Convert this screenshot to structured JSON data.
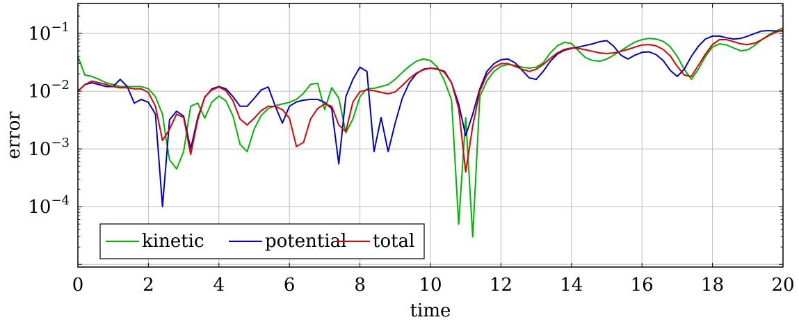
{
  "chart_data": {
    "type": "line",
    "title": "",
    "xlabel": "time",
    "ylabel": "error",
    "xlim": [
      0,
      20
    ],
    "ylim": [
      9e-06,
      0.33
    ],
    "yscale": "log",
    "grid": true,
    "legend_position": "bottom-left",
    "xticks": [
      "0",
      "2",
      "4",
      "6",
      "8",
      "10",
      "12",
      "14",
      "16",
      "18",
      "20"
    ],
    "yticks": [
      {
        "value": 0.0001,
        "base": "10",
        "exp": "−4"
      },
      {
        "value": 0.001,
        "base": "10",
        "exp": "−3"
      },
      {
        "value": 0.01,
        "base": "10",
        "exp": "−2"
      },
      {
        "value": 0.1,
        "base": "10",
        "exp": "−1"
      }
    ],
    "series": [
      {
        "name": "kinetic",
        "color": "#00b400",
        "x": [
          0,
          0.2,
          0.4,
          0.6,
          0.8,
          1.0,
          1.2,
          1.4,
          1.6,
          1.8,
          2.0,
          2.2,
          2.4,
          2.5,
          2.6,
          2.8,
          3.0,
          3.2,
          3.4,
          3.6,
          3.8,
          4.0,
          4.2,
          4.4,
          4.6,
          4.8,
          5.0,
          5.2,
          5.4,
          5.6,
          5.8,
          6.0,
          6.2,
          6.4,
          6.6,
          6.8,
          7.0,
          7.2,
          7.4,
          7.6,
          7.8,
          8.0,
          8.2,
          8.4,
          8.6,
          8.8,
          9.0,
          9.2,
          9.4,
          9.6,
          9.8,
          10.0,
          10.2,
          10.4,
          10.6,
          10.8,
          11.0,
          11.2,
          11.4,
          11.6,
          11.8,
          12.0,
          12.2,
          12.4,
          12.6,
          12.8,
          13.0,
          13.2,
          13.4,
          13.6,
          13.8,
          14.0,
          14.2,
          14.4,
          14.6,
          14.8,
          15.0,
          15.2,
          15.4,
          15.6,
          15.8,
          16.0,
          16.2,
          16.4,
          16.6,
          16.8,
          17.0,
          17.2,
          17.4,
          17.6,
          17.8,
          18.0,
          18.2,
          18.4,
          18.6,
          18.8,
          19.0,
          19.2,
          19.4,
          19.6,
          19.8,
          20.0
        ],
        "y": [
          0.04,
          0.019,
          0.018,
          0.016,
          0.014,
          0.013,
          0.012,
          0.012,
          0.012,
          0.012,
          0.011,
          0.008,
          0.004,
          0.0015,
          0.00065,
          0.00045,
          0.0009,
          0.0055,
          0.0062,
          0.0034,
          0.0065,
          0.0082,
          0.0068,
          0.0037,
          0.0012,
          0.0009,
          0.0022,
          0.0038,
          0.005,
          0.0056,
          0.006,
          0.0064,
          0.0072,
          0.0092,
          0.0131,
          0.0137,
          0.0048,
          0.0115,
          0.0076,
          0.0019,
          0.0033,
          0.008,
          0.011,
          0.0112,
          0.012,
          0.013,
          0.016,
          0.021,
          0.027,
          0.033,
          0.036,
          0.034,
          0.026,
          0.015,
          0.007,
          5e-05,
          0.0035,
          3e-05,
          0.008,
          0.015,
          0.022,
          0.027,
          0.029,
          0.028,
          0.026,
          0.025,
          0.026,
          0.031,
          0.046,
          0.061,
          0.07,
          0.067,
          0.05,
          0.038,
          0.034,
          0.033,
          0.036,
          0.042,
          0.05,
          0.06,
          0.071,
          0.078,
          0.082,
          0.08,
          0.073,
          0.059,
          0.04,
          0.024,
          0.016,
          0.024,
          0.04,
          0.058,
          0.066,
          0.063,
          0.056,
          0.05,
          0.052,
          0.062,
          0.078,
          0.095,
          0.11,
          0.125
        ]
      },
      {
        "name": "potential",
        "color": "#0000c8",
        "x": [
          0,
          0.2,
          0.4,
          0.6,
          0.8,
          1.0,
          1.2,
          1.4,
          1.6,
          1.8,
          2.0,
          2.2,
          2.4,
          2.6,
          2.8,
          3.0,
          3.2,
          3.4,
          3.6,
          3.8,
          4.0,
          4.2,
          4.4,
          4.6,
          4.8,
          5.0,
          5.2,
          5.4,
          5.6,
          5.8,
          6.0,
          6.2,
          6.4,
          6.6,
          6.8,
          7.0,
          7.2,
          7.4,
          7.6,
          7.8,
          8.0,
          8.2,
          8.4,
          8.6,
          8.8,
          9.0,
          9.2,
          9.4,
          9.6,
          9.8,
          10.0,
          10.2,
          10.4,
          10.6,
          10.8,
          11.0,
          11.2,
          11.4,
          11.6,
          11.8,
          12.0,
          12.2,
          12.4,
          12.6,
          12.8,
          13.0,
          13.2,
          13.4,
          13.6,
          13.8,
          14.0,
          14.2,
          14.4,
          14.6,
          14.8,
          15.0,
          15.2,
          15.4,
          15.6,
          15.8,
          16.0,
          16.2,
          16.4,
          16.6,
          16.8,
          17.0,
          17.2,
          17.4,
          17.6,
          17.8,
          18.0,
          18.2,
          18.4,
          18.6,
          18.8,
          19.0,
          19.2,
          19.4,
          19.6,
          19.8,
          20.0
        ],
        "y": [
          0.01,
          0.013,
          0.014,
          0.013,
          0.012,
          0.012,
          0.016,
          0.012,
          0.0062,
          0.0072,
          0.0064,
          0.004,
          0.0001,
          0.0032,
          0.0045,
          0.0037,
          0.001,
          0.0035,
          0.0078,
          0.011,
          0.012,
          0.011,
          0.008,
          0.0055,
          0.0055,
          0.0075,
          0.0105,
          0.0118,
          0.0055,
          0.0028,
          0.0055,
          0.0065,
          0.007,
          0.0072,
          0.0072,
          0.0064,
          0.005,
          0.00055,
          0.008,
          0.016,
          0.026,
          0.022,
          0.0009,
          0.0035,
          0.0009,
          0.0028,
          0.0075,
          0.014,
          0.02,
          0.024,
          0.025,
          0.024,
          0.022,
          0.014,
          0.006,
          0.0017,
          0.004,
          0.011,
          0.022,
          0.03,
          0.035,
          0.036,
          0.031,
          0.023,
          0.017,
          0.016,
          0.022,
          0.033,
          0.044,
          0.051,
          0.055,
          0.058,
          0.062,
          0.066,
          0.072,
          0.075,
          0.06,
          0.042,
          0.036,
          0.042,
          0.047,
          0.048,
          0.043,
          0.034,
          0.023,
          0.018,
          0.024,
          0.04,
          0.06,
          0.08,
          0.09,
          0.09,
          0.084,
          0.08,
          0.082,
          0.09,
          0.1,
          0.11,
          0.112,
          0.11,
          0.11
        ]
      },
      {
        "name": "total",
        "color": "#dc0000",
        "x": [
          0,
          0.2,
          0.4,
          0.6,
          0.8,
          1.0,
          1.2,
          1.4,
          1.6,
          1.8,
          2.0,
          2.2,
          2.4,
          2.6,
          2.8,
          3.0,
          3.2,
          3.4,
          3.6,
          3.8,
          4.0,
          4.2,
          4.4,
          4.6,
          4.8,
          5.0,
          5.2,
          5.4,
          5.6,
          5.8,
          6.0,
          6.2,
          6.4,
          6.6,
          6.8,
          7.0,
          7.2,
          7.4,
          7.6,
          7.8,
          8.0,
          8.2,
          8.4,
          8.6,
          8.8,
          9.0,
          9.2,
          9.4,
          9.6,
          9.8,
          10.0,
          10.2,
          10.4,
          10.6,
          10.8,
          11.0,
          11.2,
          11.4,
          11.6,
          11.8,
          12.0,
          12.2,
          12.4,
          12.6,
          12.8,
          13.0,
          13.2,
          13.4,
          13.6,
          13.8,
          14.0,
          14.2,
          14.4,
          14.6,
          14.8,
          15.0,
          15.2,
          15.4,
          15.6,
          15.8,
          16.0,
          16.2,
          16.4,
          16.6,
          16.8,
          17.0,
          17.2,
          17.4,
          17.6,
          17.8,
          18.0,
          18.2,
          18.4,
          18.6,
          18.8,
          19.0,
          19.2,
          19.4,
          19.6,
          19.8,
          20.0
        ],
        "y": [
          0.01,
          0.013,
          0.015,
          0.014,
          0.013,
          0.012,
          0.0115,
          0.0115,
          0.011,
          0.011,
          0.0095,
          0.0055,
          0.0014,
          0.0022,
          0.004,
          0.0035,
          0.0008,
          0.0032,
          0.008,
          0.0105,
          0.0118,
          0.0102,
          0.0068,
          0.0033,
          0.0026,
          0.0034,
          0.0046,
          0.0055,
          0.0054,
          0.0048,
          0.0034,
          0.0011,
          0.0013,
          0.0033,
          0.005,
          0.006,
          0.0055,
          0.0026,
          0.002,
          0.0065,
          0.0098,
          0.0105,
          0.0102,
          0.0095,
          0.009,
          0.0097,
          0.0125,
          0.0165,
          0.0205,
          0.0235,
          0.025,
          0.0245,
          0.021,
          0.014,
          0.005,
          0.0004,
          0.0025,
          0.01,
          0.019,
          0.026,
          0.03,
          0.03,
          0.027,
          0.024,
          0.022,
          0.024,
          0.029,
          0.037,
          0.046,
          0.053,
          0.056,
          0.055,
          0.052,
          0.049,
          0.046,
          0.045,
          0.046,
          0.049,
          0.053,
          0.058,
          0.063,
          0.064,
          0.061,
          0.053,
          0.041,
          0.027,
          0.019,
          0.018,
          0.028,
          0.044,
          0.064,
          0.078,
          0.078,
          0.072,
          0.066,
          0.064,
          0.068,
          0.078,
          0.092,
          0.105,
          0.115
        ]
      }
    ]
  }
}
